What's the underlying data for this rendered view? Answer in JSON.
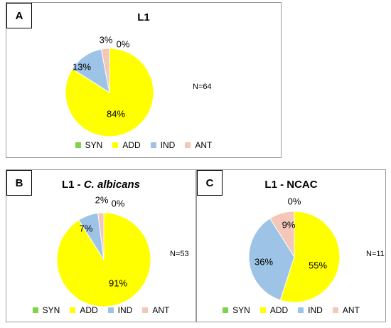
{
  "chart_data": [
    {
      "type": "pie",
      "panel": "A",
      "title": "L1",
      "annotation": "N=64",
      "categories": [
        "SYN",
        "ADD",
        "IND",
        "ANT"
      ],
      "values": [
        0,
        84,
        13,
        3
      ],
      "labels": [
        "0%",
        "84%",
        "13%",
        "3%"
      ],
      "colors": [
        "#7dd34a",
        "#ffff00",
        "#9dc3e6",
        "#f4c7b8"
      ]
    },
    {
      "type": "pie",
      "panel": "B",
      "title_pre": "L1 - ",
      "title_italic": "C. albicans",
      "annotation": "N=53",
      "categories": [
        "SYN",
        "ADD",
        "IND",
        "ANT"
      ],
      "values": [
        0,
        91,
        7,
        2
      ],
      "labels": [
        "0%",
        "91%",
        "7%",
        "2%"
      ],
      "colors": [
        "#7dd34a",
        "#ffff00",
        "#9dc3e6",
        "#f4c7b8"
      ]
    },
    {
      "type": "pie",
      "panel": "C",
      "title": "L1 - NCAC",
      "annotation": "N=11",
      "categories": [
        "SYN",
        "ADD",
        "IND",
        "ANT"
      ],
      "values": [
        0,
        55,
        36,
        9
      ],
      "labels": [
        "0%",
        "55%",
        "36%",
        "9%"
      ],
      "colors": [
        "#7dd34a",
        "#ffff00",
        "#9dc3e6",
        "#f4c7b8"
      ]
    }
  ]
}
